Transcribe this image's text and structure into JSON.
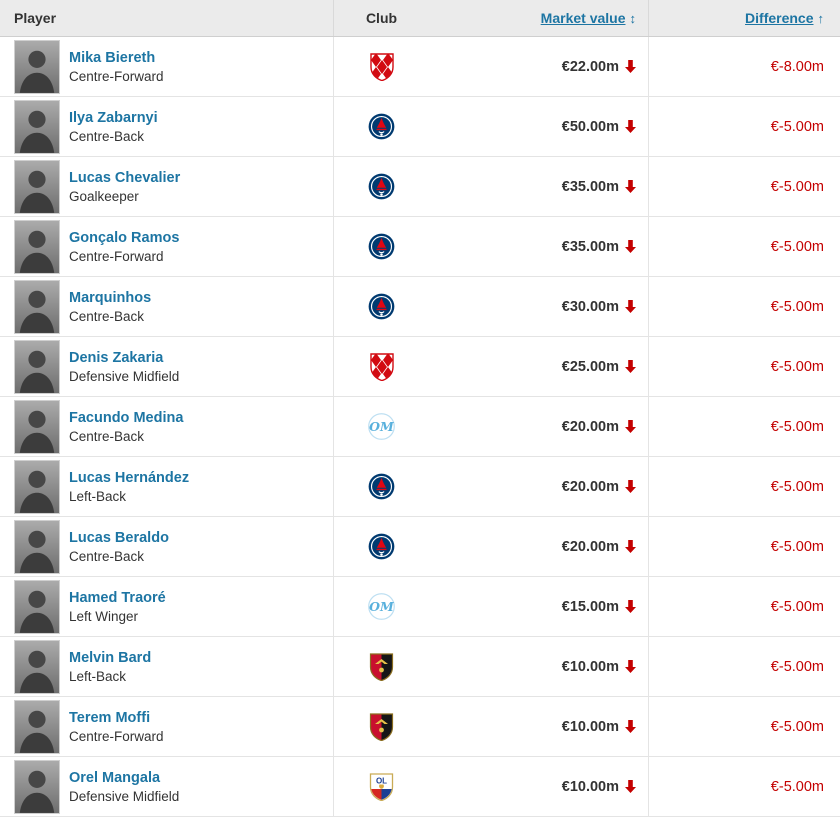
{
  "colors": {
    "link_blue": "#1d75a3",
    "negative_red": "#c40000",
    "header_bg": "#ebebeb"
  },
  "table": {
    "columns": {
      "player": "Player",
      "club": "Club",
      "market_value": "Market value",
      "market_value_sort_icon": "↕",
      "difference": "Difference",
      "difference_sort_icon": "↑"
    },
    "rows": [
      {
        "name": "Mika Biereth",
        "position": "Centre-Forward",
        "club_icon": "monaco-crest",
        "market_value": "€22.00m",
        "trend": "down",
        "difference": "€-8.00m"
      },
      {
        "name": "Ilya Zabarnyi",
        "position": "Centre-Back",
        "club_icon": "psg-crest",
        "market_value": "€50.00m",
        "trend": "down",
        "difference": "€-5.00m"
      },
      {
        "name": "Lucas Chevalier",
        "position": "Goalkeeper",
        "club_icon": "psg-crest",
        "market_value": "€35.00m",
        "trend": "down",
        "difference": "€-5.00m"
      },
      {
        "name": "Gonçalo Ramos",
        "position": "Centre-Forward",
        "club_icon": "psg-crest",
        "market_value": "€35.00m",
        "trend": "down",
        "difference": "€-5.00m"
      },
      {
        "name": "Marquinhos",
        "position": "Centre-Back",
        "club_icon": "psg-crest",
        "market_value": "€30.00m",
        "trend": "down",
        "difference": "€-5.00m"
      },
      {
        "name": "Denis Zakaria",
        "position": "Defensive Midfield",
        "club_icon": "monaco-crest",
        "market_value": "€25.00m",
        "trend": "down",
        "difference": "€-5.00m"
      },
      {
        "name": "Facundo Medina",
        "position": "Centre-Back",
        "club_icon": "marseille-crest",
        "market_value": "€20.00m",
        "trend": "down",
        "difference": "€-5.00m"
      },
      {
        "name": "Lucas Hernández",
        "position": "Left-Back",
        "club_icon": "psg-crest",
        "market_value": "€20.00m",
        "trend": "down",
        "difference": "€-5.00m"
      },
      {
        "name": "Lucas Beraldo",
        "position": "Centre-Back",
        "club_icon": "psg-crest",
        "market_value": "€20.00m",
        "trend": "down",
        "difference": "€-5.00m"
      },
      {
        "name": "Hamed Traoré",
        "position": "Left Winger",
        "club_icon": "marseille-crest",
        "market_value": "€15.00m",
        "trend": "down",
        "difference": "€-5.00m"
      },
      {
        "name": "Melvin Bard",
        "position": "Left-Back",
        "club_icon": "nice-crest",
        "market_value": "€10.00m",
        "trend": "down",
        "difference": "€-5.00m"
      },
      {
        "name": "Terem Moffi",
        "position": "Centre-Forward",
        "club_icon": "nice-crest",
        "market_value": "€10.00m",
        "trend": "down",
        "difference": "€-5.00m"
      },
      {
        "name": "Orel Mangala",
        "position": "Defensive Midfield",
        "club_icon": "lyon-crest",
        "market_value": "€10.00m",
        "trend": "down",
        "difference": "€-5.00m"
      }
    ]
  }
}
